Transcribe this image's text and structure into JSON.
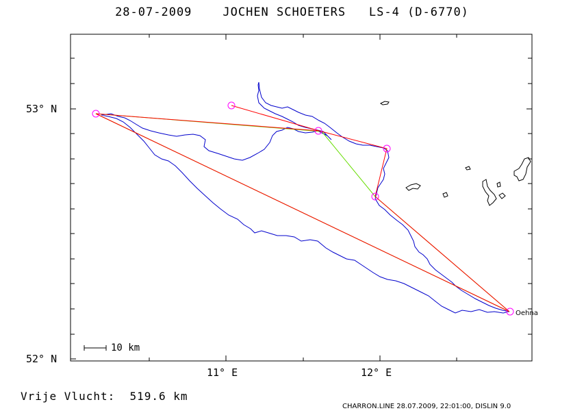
{
  "header": {
    "date": "28-07-2009",
    "pilot": "JOCHEN SCHOETERS",
    "glider": "LS-4 (D-6770)"
  },
  "axes": {
    "y_ticks": [
      {
        "label": "53° N",
        "lat": 53.0
      },
      {
        "label": "52° N",
        "lat": 52.0
      }
    ],
    "x_ticks": [
      {
        "label": "11° E",
        "lon": 11.0
      },
      {
        "label": "12° E",
        "lon": 12.0
      }
    ]
  },
  "scale_bar": {
    "label": "10 km"
  },
  "place": {
    "name": "Oehna"
  },
  "summary": {
    "label": "Vrije Vlucht:",
    "value": "519.6 km"
  },
  "footer": {
    "text": "CHARRON.LINE 28.07.2009, 22:01:00, DISLIN 9.0"
  },
  "colors": {
    "track": "#0000cc",
    "task_red": "#ff0000",
    "task_green": "#66dd00",
    "turnpoint": "#ff00ff",
    "water": "#000000"
  },
  "chart_data": {
    "type": "map",
    "turnpoints": [
      {
        "lon": 12.83,
        "lat": 52.19,
        "name": "Oehna"
      },
      {
        "lon": 10.16,
        "lat": 52.98
      },
      {
        "lon": 11.05,
        "lat": 53.01
      },
      {
        "lon": 11.6,
        "lat": 52.91
      },
      {
        "lon": 12.05,
        "lat": 52.84
      },
      {
        "lon": 11.98,
        "lat": 52.65
      }
    ]
  }
}
